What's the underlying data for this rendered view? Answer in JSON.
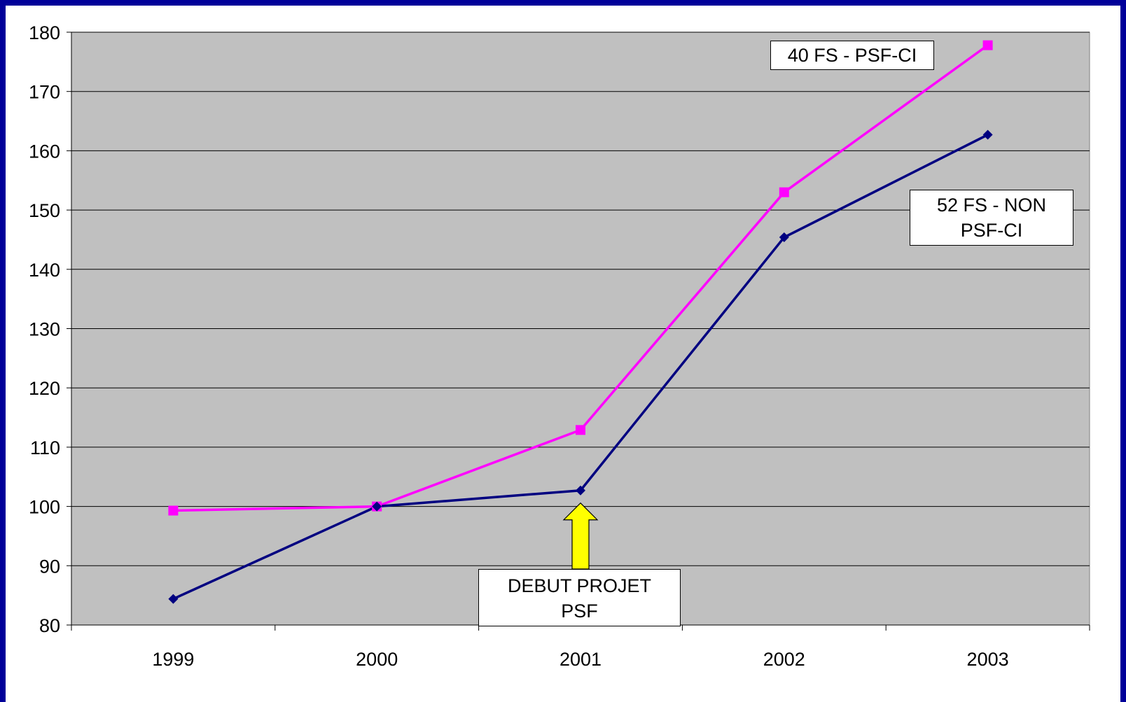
{
  "chart_data": {
    "type": "line",
    "categories": [
      "1999",
      "2000",
      "2001",
      "2002",
      "2003"
    ],
    "series": [
      {
        "name": "40 FS - PSF-CI",
        "color": "#ff00ff",
        "marker": "square",
        "values": [
          99.3,
          100,
          112.9,
          153,
          177.8
        ]
      },
      {
        "name": "52 FS - NON PSF-CI",
        "color": "#000080",
        "marker": "diamond",
        "values": [
          84.4,
          100,
          102.7,
          145.4,
          162.7
        ]
      }
    ],
    "ylim": [
      80,
      180
    ],
    "yticks": [
      "80",
      "90",
      "100",
      "110",
      "120",
      "130",
      "140",
      "150",
      "160",
      "170",
      "180"
    ],
    "grid": true,
    "plot_background": "#c0c0c0",
    "annotations": [
      {
        "text": "40 FS - PSF-CI"
      },
      {
        "text": "52 FS - NON\nPSF-CI"
      },
      {
        "text": "DEBUT PROJET\nPSF",
        "arrow_color": "#ffff00",
        "points_to": "2001"
      }
    ]
  }
}
